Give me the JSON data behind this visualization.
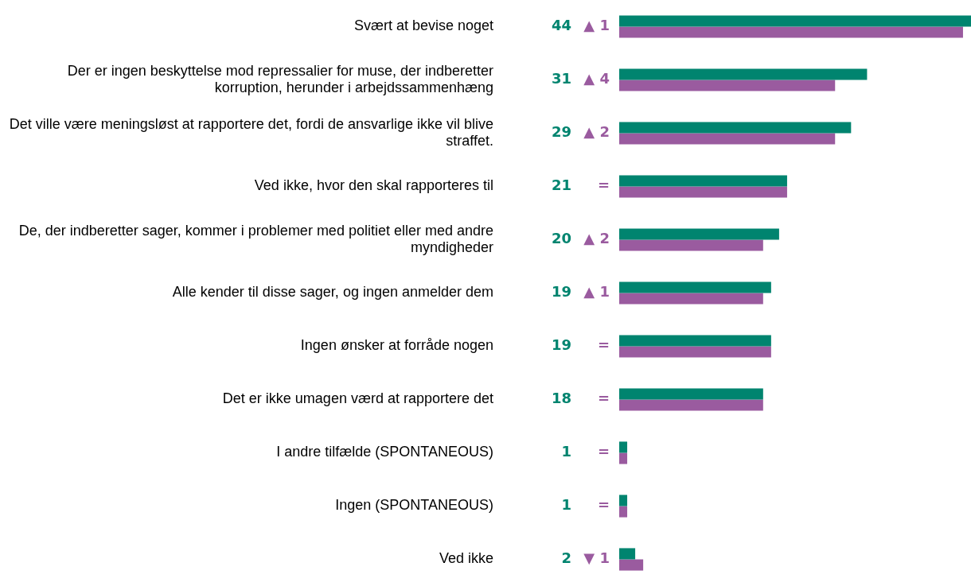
{
  "chart_data": {
    "type": "bar",
    "orientation": "horizontal",
    "categories": [
      "Svært at bevise noget",
      "Der er ingen beskyttelse mod repressalier for muse, der indberetter korruption, herunder i arbejdssammenhæng",
      "Det ville være meningsløst at rapportere det, fordi de ansvarlige ikke vil blive straffet.",
      "Ved ikke, hvor den skal rapporteres til",
      "De, der indberetter sager, kommer i problemer med politiet eller med andre myndigheder",
      "Alle kender til disse sager, og ingen anmelder dem",
      "Ingen ønsker at forråde nogen",
      "Det er ikke umagen værd at rapportere det",
      "I andre tilfælde (SPONTANEOUS)",
      "Ingen (SPONTANEOUS)",
      "Ved ikke"
    ],
    "series": [
      {
        "color": "#00846f",
        "values": [
          44,
          31,
          29,
          21,
          20,
          19,
          19,
          18,
          1,
          1,
          2
        ],
        "value_labels": [
          "44",
          "31",
          "29",
          "21",
          "20",
          "19",
          "19",
          "18",
          "1",
          "1",
          "2"
        ]
      },
      {
        "color": "#9a5b9f",
        "values": [
          43,
          27,
          27,
          21,
          18,
          18,
          19,
          18,
          1,
          1,
          3
        ]
      }
    ],
    "annotations": [
      "▲ 1",
      "▲ 4",
      "▲ 2",
      "=",
      "▲ 2",
      "▲ 1",
      "=",
      "=",
      "=",
      "=",
      "▼ 1"
    ],
    "xlim": [
      0,
      44
    ],
    "legend": false,
    "tick_labels": "y"
  }
}
